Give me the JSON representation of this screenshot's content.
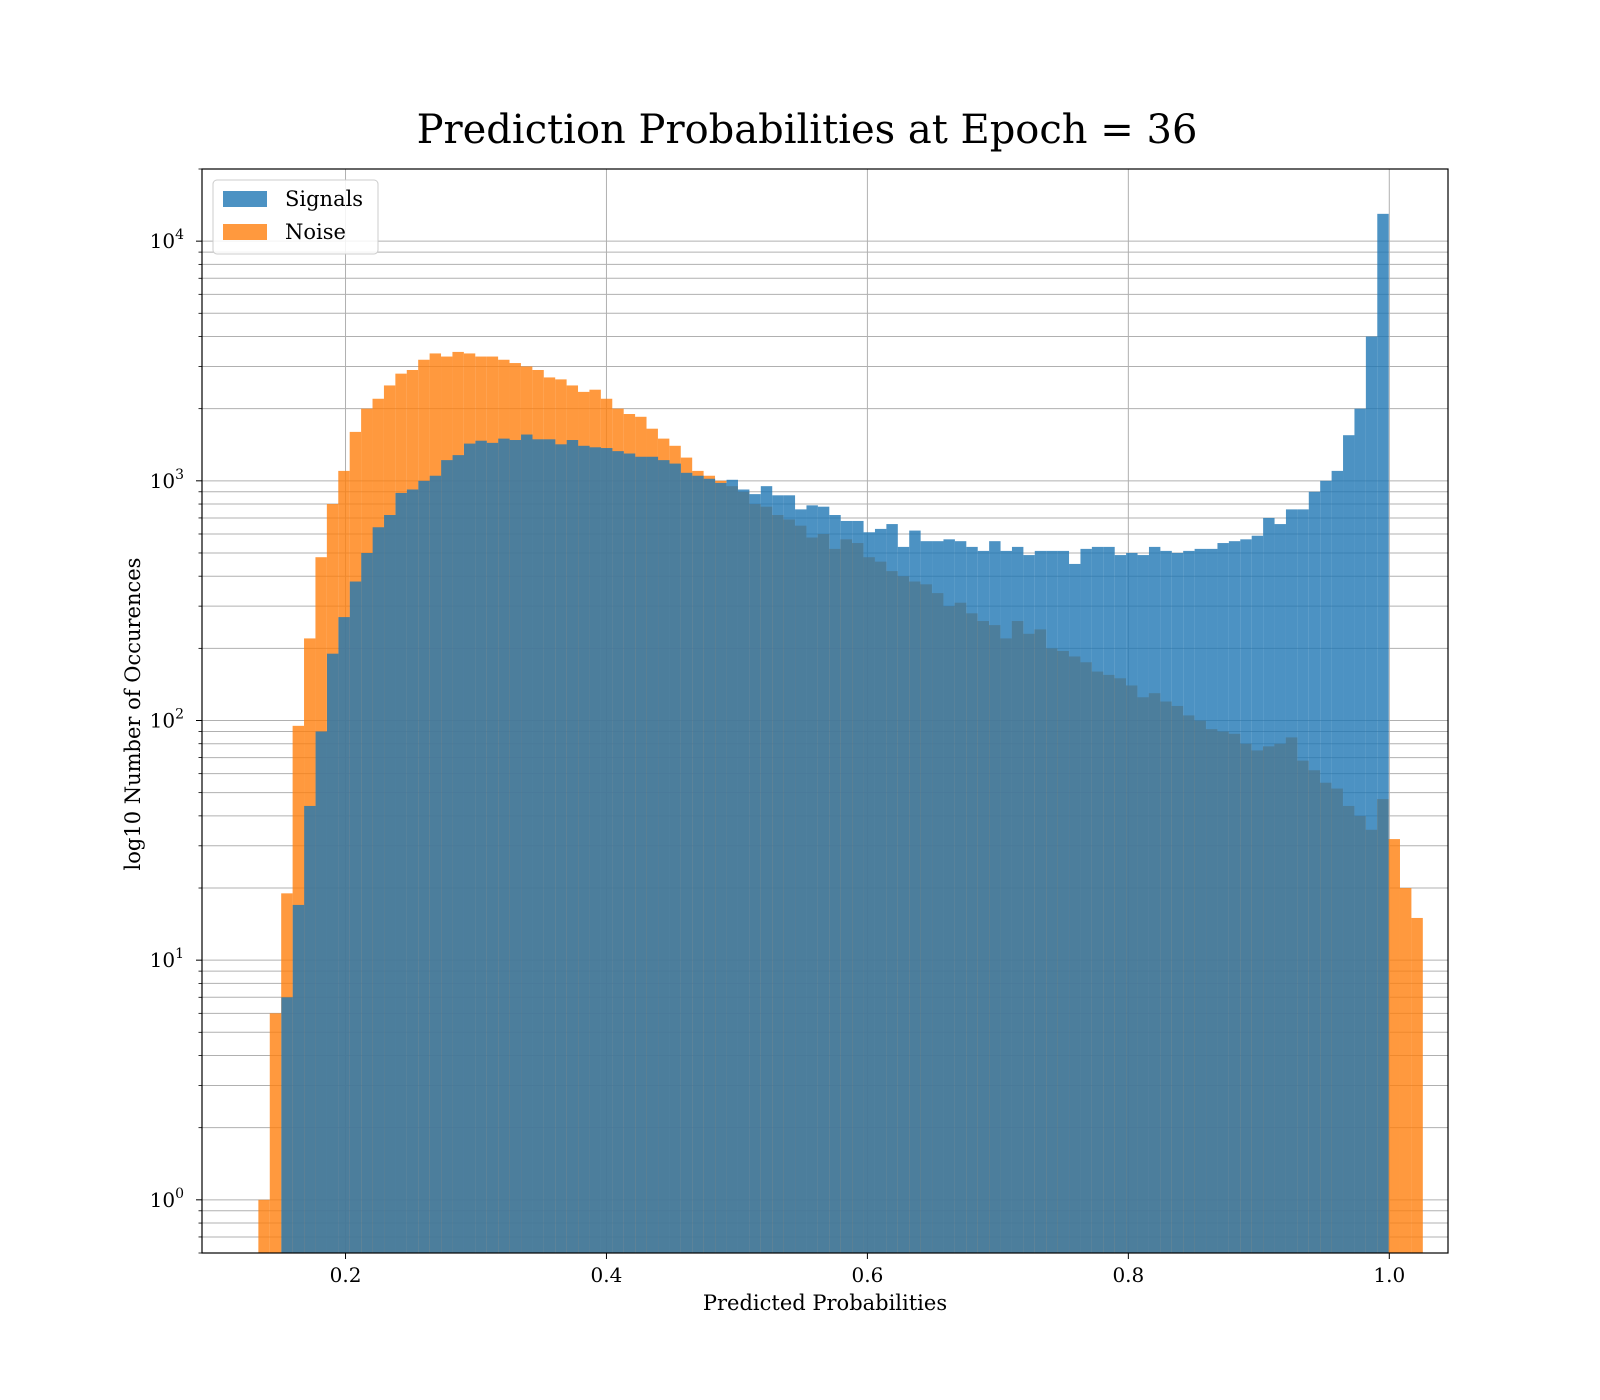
{
  "colors": {
    "signals": "#1f77b4",
    "noise": "#ff7f0e",
    "grid": "#b0b0b0"
  },
  "chart_data": {
    "type": "bar",
    "title": "Prediction Probabilities at Epoch = 36",
    "xlabel": "Predicted Probabilities",
    "ylabel": "log10 Number of Occurences",
    "x_scale": "linear",
    "y_scale": "log",
    "xlim": [
      0.09,
      1.045
    ],
    "ylim": [
      0.6,
      20000
    ],
    "x_ticks": [
      {
        "value": 0.2,
        "label": "0.2"
      },
      {
        "value": 0.4,
        "label": "0.4"
      },
      {
        "value": 0.6,
        "label": "0.6"
      },
      {
        "value": 0.8,
        "label": "0.8"
      },
      {
        "value": 1.0,
        "label": "1.0"
      }
    ],
    "y_ticks": [
      {
        "value": 1,
        "base": "10",
        "exp": "0"
      },
      {
        "value": 10,
        "base": "10",
        "exp": "1"
      },
      {
        "value": 100,
        "base": "10",
        "exp": "2"
      },
      {
        "value": 1000,
        "base": "10",
        "exp": "3"
      },
      {
        "value": 10000,
        "base": "10",
        "exp": "4"
      }
    ],
    "grid": true,
    "legend_position": "top-left",
    "series": [
      {
        "name": "Signals",
        "x_start": 0.1508,
        "bin_width": 0.00875,
        "values": [
          7,
          17,
          44,
          90,
          190,
          270,
          380,
          500,
          640,
          720,
          890,
          920,
          1000,
          1050,
          1220,
          1280,
          1430,
          1470,
          1440,
          1500,
          1480,
          1560,
          1490,
          1490,
          1420,
          1480,
          1400,
          1380,
          1370,
          1330,
          1300,
          1260,
          1260,
          1220,
          1180,
          1080,
          1050,
          1020,
          980,
          1010,
          920,
          880,
          950,
          870,
          870,
          760,
          790,
          780,
          720,
          680,
          680,
          610,
          630,
          660,
          530,
          620,
          560,
          560,
          570,
          560,
          530,
          510,
          560,
          510,
          530,
          490,
          510,
          510,
          510,
          450,
          520,
          530,
          530,
          490,
          500,
          490,
          530,
          510,
          500,
          510,
          520,
          520,
          550,
          560,
          570,
          590,
          700,
          660,
          760,
          760,
          900,
          1000,
          1100,
          1550,
          2000,
          4000,
          13000
        ]
      },
      {
        "name": "Noise",
        "x_start": 0.1332,
        "bin_width": 0.00875,
        "values": [
          1,
          6,
          19,
          95,
          220,
          480,
          800,
          1100,
          1600,
          2000,
          2200,
          2500,
          2800,
          2900,
          3200,
          3400,
          3300,
          3450,
          3400,
          3300,
          3300,
          3200,
          3100,
          3000,
          2900,
          2700,
          2650,
          2500,
          2350,
          2400,
          2200,
          2000,
          1900,
          1850,
          1650,
          1500,
          1400,
          1250,
          1100,
          1050,
          1000,
          950,
          900,
          800,
          780,
          720,
          690,
          650,
          580,
          600,
          520,
          570,
          550,
          480,
          460,
          420,
          400,
          380,
          370,
          340,
          300,
          310,
          280,
          260,
          250,
          220,
          260,
          230,
          240,
          200,
          195,
          185,
          175,
          160,
          155,
          150,
          140,
          125,
          130,
          120,
          115,
          105,
          100,
          92,
          90,
          88,
          80,
          75,
          78,
          80,
          85,
          68,
          62,
          55,
          52,
          44,
          40,
          35,
          47,
          32,
          20,
          15
        ]
      }
    ]
  }
}
